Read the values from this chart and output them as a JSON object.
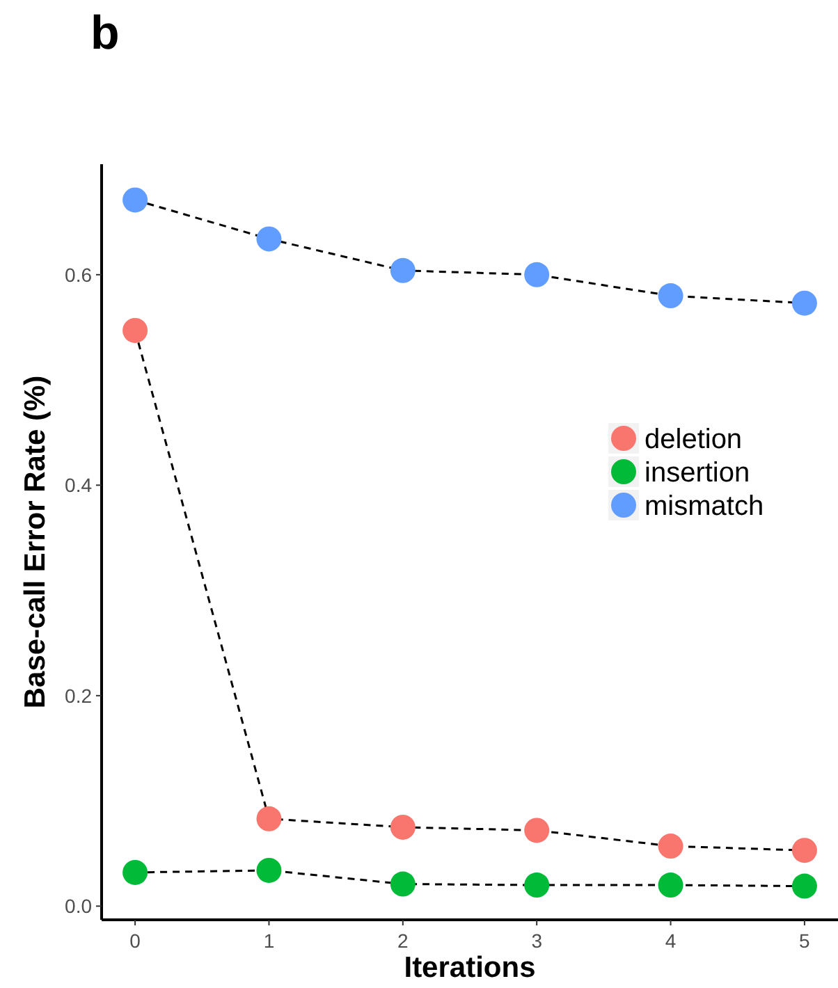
{
  "chart_data": {
    "type": "line",
    "title": "b",
    "xlabel": "Iterations",
    "ylabel": "Base-call Error Rate (%)",
    "x": [
      0,
      1,
      2,
      3,
      4,
      5
    ],
    "xlim": [
      -0.25,
      5.25
    ],
    "xticks": [
      0,
      1,
      2,
      3,
      4,
      5
    ],
    "ylim": [
      -0.013,
      0.705
    ],
    "yticks": [
      {
        "value": 0,
        "label": "0.0"
      },
      0.2,
      0.4,
      0.6
    ],
    "marker": "circle",
    "line_style": "dashed",
    "legend": "right",
    "grid": false,
    "series": [
      {
        "name": "deletion",
        "color": "#f8766d",
        "values": [
          0.547,
          0.083,
          0.075,
          0.072,
          0.057,
          0.053
        ]
      },
      {
        "name": "insertion",
        "color": "#00ba38",
        "values": [
          0.032,
          0.034,
          0.021,
          0.02,
          0.02,
          0.019
        ]
      },
      {
        "name": "mismatch",
        "color": "#619cff",
        "values": [
          0.671,
          0.634,
          0.604,
          0.6,
          0.58,
          0.573
        ]
      }
    ]
  }
}
